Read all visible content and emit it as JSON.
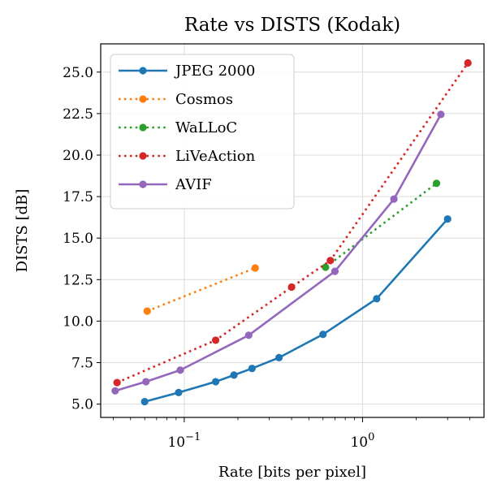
{
  "chart_data": {
    "type": "line",
    "title": "Rate vs DISTS (Kodak)",
    "xlabel": "Rate [bits per pixel]",
    "ylabel": "DISTS [dB]",
    "xscale": "log",
    "xlim": [
      0.034,
      4.8
    ],
    "ylim": [
      4.2,
      26.7
    ],
    "xticks": [
      {
        "value": 0.1,
        "base": "10",
        "exp": "−1"
      },
      {
        "value": 1,
        "base": "10",
        "exp": "0"
      }
    ],
    "yticks": [
      5.0,
      7.5,
      10.0,
      12.5,
      15.0,
      17.5,
      20.0,
      22.5,
      25.0
    ],
    "ytick_labels": [
      "5.0",
      "7.5",
      "10.0",
      "12.5",
      "15.0",
      "17.5",
      "20.0",
      "22.5",
      "25.0"
    ],
    "grid": true,
    "legend_position": "top-left",
    "series": [
      {
        "name": "JPEG 2000",
        "color": "#1f77b4",
        "style": "solid",
        "x": [
          0.06,
          0.093,
          0.15,
          0.19,
          0.24,
          0.34,
          0.6,
          1.2,
          3.0
        ],
        "y": [
          5.15,
          5.7,
          6.35,
          6.75,
          7.15,
          7.8,
          9.2,
          11.35,
          16.15
        ]
      },
      {
        "name": "Cosmos",
        "color": "#ff7f0e",
        "style": "dotted",
        "x": [
          0.062,
          0.25
        ],
        "y": [
          10.6,
          13.2
        ]
      },
      {
        "name": "WaLLoC",
        "color": "#2ca02c",
        "style": "dotted",
        "x": [
          0.62,
          2.6
        ],
        "y": [
          13.25,
          18.3
        ]
      },
      {
        "name": "LiVeAction",
        "color": "#d62728",
        "style": "dotted",
        "x": [
          0.042,
          0.15,
          0.4,
          0.66,
          3.9
        ],
        "y": [
          6.3,
          8.85,
          12.05,
          13.65,
          25.55
        ]
      },
      {
        "name": "AVIF",
        "color": "#9467bd",
        "style": "solid",
        "x": [
          0.041,
          0.061,
          0.095,
          0.23,
          0.7,
          1.5,
          2.75
        ],
        "y": [
          5.8,
          6.35,
          7.05,
          9.15,
          13.0,
          17.35,
          22.45
        ]
      }
    ]
  }
}
